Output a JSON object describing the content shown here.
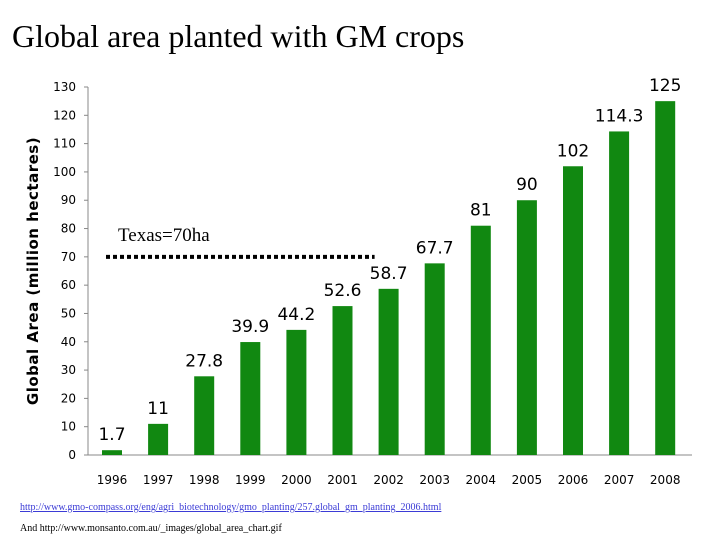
{
  "slide": {
    "title": "Global area planted with GM crops",
    "source_link": "http://www.gmo-compass.org/eng/agri_biotechnology/gmo_planting/257.global_gm_planting_2006.html",
    "source_2": "And http://www.monsanto.com.au/_images/global_area_chart.gif"
  },
  "chart_data": {
    "type": "bar",
    "title": "",
    "xlabel": "",
    "ylabel": "Global Area (million hectares)",
    "categories": [
      "1996",
      "1997",
      "1998",
      "1999",
      "2000",
      "2001",
      "2002",
      "2003",
      "2004",
      "2005",
      "2006",
      "2007",
      "2008"
    ],
    "values": [
      1.7,
      11,
      27.8,
      39.9,
      44.2,
      52.6,
      58.7,
      67.7,
      81,
      90,
      102,
      114.3,
      125
    ],
    "value_labels": [
      "1.7",
      "11",
      "27.8",
      "39.9",
      "44.2",
      "52.6",
      "58.7",
      "67.7",
      "81",
      "90",
      "102",
      "114.3",
      "125"
    ],
    "ylim": [
      0,
      130
    ],
    "yticks": [
      "0",
      "10",
      "20",
      "30",
      "40",
      "50",
      "60",
      "70",
      "80",
      "90",
      "100",
      "110",
      "120",
      "130"
    ],
    "bar_color": "#118811",
    "grid": false,
    "reference_line": {
      "value": 70,
      "label": "Texas=70ha",
      "style": "dotted"
    }
  }
}
